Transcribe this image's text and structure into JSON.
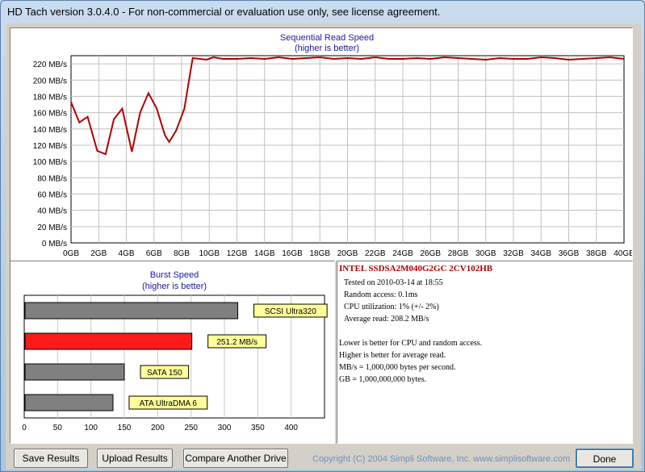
{
  "window": {
    "title": "HD Tach version 3.0.4.0  - For non-commercial or evaluation use only, see license agreement."
  },
  "seq": {
    "title": "Sequential Read Speed",
    "subtitle": "(higher is better)"
  },
  "burst": {
    "title": "Burst Speed",
    "subtitle": "(higher is better)"
  },
  "chart_data": [
    {
      "type": "line",
      "title": "Sequential Read Speed",
      "subtitle": "(higher is better)",
      "yunit": "MB/s",
      "ylim": [
        0,
        230
      ],
      "yticks": [
        0,
        20,
        40,
        60,
        80,
        100,
        120,
        140,
        160,
        180,
        200,
        220
      ],
      "ytick_labels": [
        "0 MB/s",
        "20 MB/s",
        "40 MB/s",
        "60 MB/s",
        "80 MB/s",
        "100 MB/s",
        "120 MB/s",
        "140 MB/s",
        "160 MB/s",
        "180 MB/s",
        "200 MB/s",
        "220 MB/s"
      ],
      "xlim": [
        0,
        40
      ],
      "xticks": [
        0,
        2,
        4,
        6,
        8,
        10,
        12,
        14,
        16,
        18,
        20,
        22,
        24,
        26,
        28,
        30,
        32,
        34,
        36,
        38,
        40
      ],
      "xtick_labels": [
        "0GB",
        "2GB",
        "4GB",
        "6GB",
        "8GB",
        "10GB",
        "12GB",
        "14GB",
        "16GB",
        "18GB",
        "20GB",
        "22GB",
        "24GB",
        "26GB",
        "28GB",
        "30GB",
        "32GB",
        "34GB",
        "36GB",
        "38GB",
        "40GB"
      ],
      "grid": true,
      "series": [
        {
          "color": "#b00000",
          "x": [
            0,
            0.6,
            1.2,
            1.9,
            2.5,
            3.1,
            3.7,
            4.4,
            5.0,
            5.6,
            6.2,
            6.8,
            7.1,
            7.6,
            8.2,
            8.8,
            9.3,
            9.8,
            10.3,
            11.0,
            12.0,
            13.0,
            14.0,
            15.0,
            16.0,
            17.0,
            18.0,
            19.0,
            20.0,
            21.0,
            22.0,
            23.0,
            24.0,
            25.0,
            26.0,
            27.0,
            28.0,
            29.0,
            30.0,
            31.0,
            32.0,
            33.0,
            34.0,
            35.0,
            36.0,
            37.0,
            38.0,
            39.0,
            40.0
          ],
          "y": [
            173,
            148,
            155,
            113,
            109,
            152,
            165,
            112,
            160,
            184,
            165,
            132,
            124,
            138,
            165,
            227,
            226,
            225,
            228,
            226,
            226,
            227,
            226,
            228,
            226,
            227,
            228,
            226,
            227,
            226,
            228,
            226,
            226,
            227,
            226,
            228,
            227,
            226,
            225,
            227,
            226,
            226,
            228,
            227,
            225,
            226,
            227,
            228,
            226
          ]
        }
      ]
    },
    {
      "type": "bar",
      "orientation": "horizontal",
      "title": "Burst Speed",
      "subtitle": "(higher is better)",
      "xlim": [
        0,
        450
      ],
      "xticks": [
        0,
        50,
        100,
        150,
        200,
        250,
        300,
        350,
        400
      ],
      "categories": [
        "SCSI Ultra320",
        "251.2 MB/s",
        "SATA 150",
        "ATA UltraDMA 6"
      ],
      "values": [
        320,
        251.2,
        150,
        133
      ],
      "colors": [
        "#808080",
        "#ff1a1a",
        "#808080",
        "#808080"
      ],
      "grid": true
    }
  ],
  "info": {
    "drive": "INTEL SSDSA2M040G2GC 2CV102HB",
    "lines": [
      "Tested on 2010-03-14 at 18:55",
      "Random access: 0.1ms",
      "CPU utilization: 1% (+/- 2%)",
      "Average read: 208.2 MB/s"
    ],
    "notes": [
      "Lower is better for CPU and random access.",
      "Higher is better for average read.",
      "MB/s = 1,000,000 bytes per second.",
      "GB = 1,000,000,000 bytes."
    ]
  },
  "buttons": {
    "save": "Save Results",
    "upload": "Upload Results",
    "compare": "Compare Another Drive",
    "done": "Done"
  },
  "copyright": "Copyright (C) 2004 Simpli Software, Inc. www.simplisoftware.com"
}
